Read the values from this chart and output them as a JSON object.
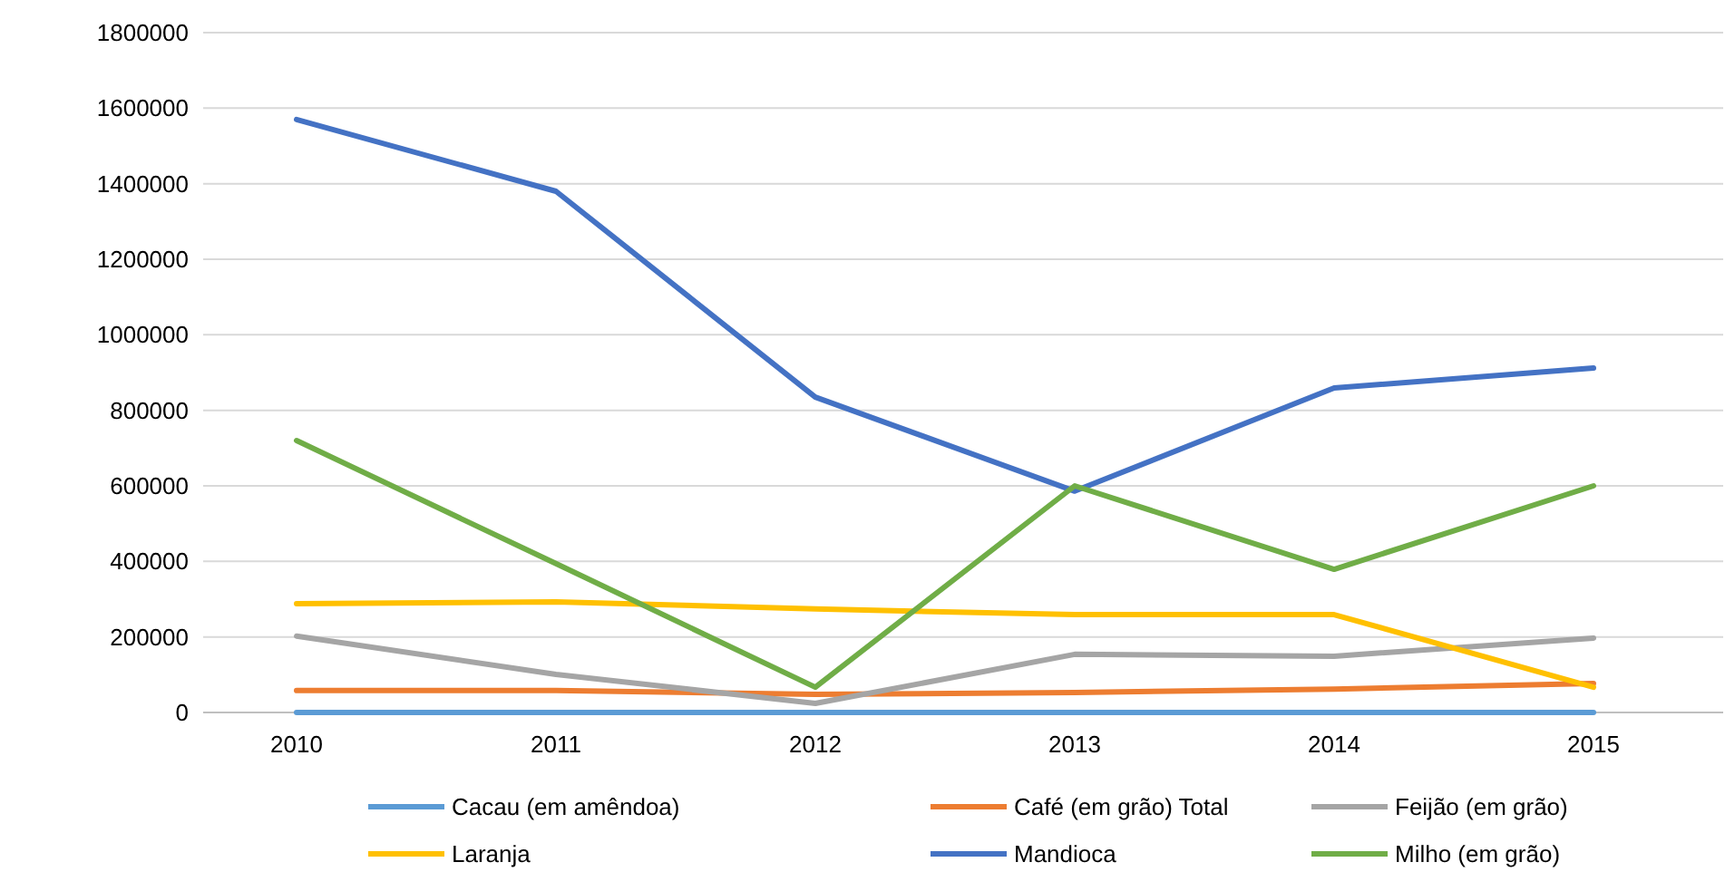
{
  "chart_data": {
    "type": "line",
    "categories": [
      "2010",
      "2011",
      "2012",
      "2013",
      "2014",
      "2015"
    ],
    "ylim": [
      0,
      1800000
    ],
    "yticks": [
      0,
      200000,
      400000,
      600000,
      800000,
      1000000,
      1200000,
      1400000,
      1600000,
      1800000
    ],
    "grid": "y",
    "legend": "bottom",
    "marker": "none",
    "line_style": "solid",
    "series": [
      {
        "name": "Cacau (em amêndoa)",
        "color": "#5b9bd5",
        "values": [
          0,
          0,
          0,
          0,
          0,
          0
        ]
      },
      {
        "name": "Café (em grão) Total",
        "color": "#ed7d31",
        "values": [
          58000,
          58000,
          48000,
          53000,
          62000,
          77000
        ]
      },
      {
        "name": "Feijão (em grão)",
        "color": "#a5a5a5",
        "values": [
          202000,
          101000,
          24000,
          154000,
          149000,
          197000
        ]
      },
      {
        "name": "Laranja",
        "color": "#ffc000",
        "values": [
          288000,
          293000,
          274000,
          259000,
          259000,
          67000
        ]
      },
      {
        "name": "Mandioca",
        "color": "#4472c4",
        "values": [
          1570000,
          1380000,
          835000,
          586000,
          859000,
          912000
        ]
      },
      {
        "name": "Milho (em grão)",
        "color": "#70ad47",
        "values": [
          720000,
          394000,
          67000,
          600000,
          379000,
          600000
        ]
      }
    ]
  }
}
